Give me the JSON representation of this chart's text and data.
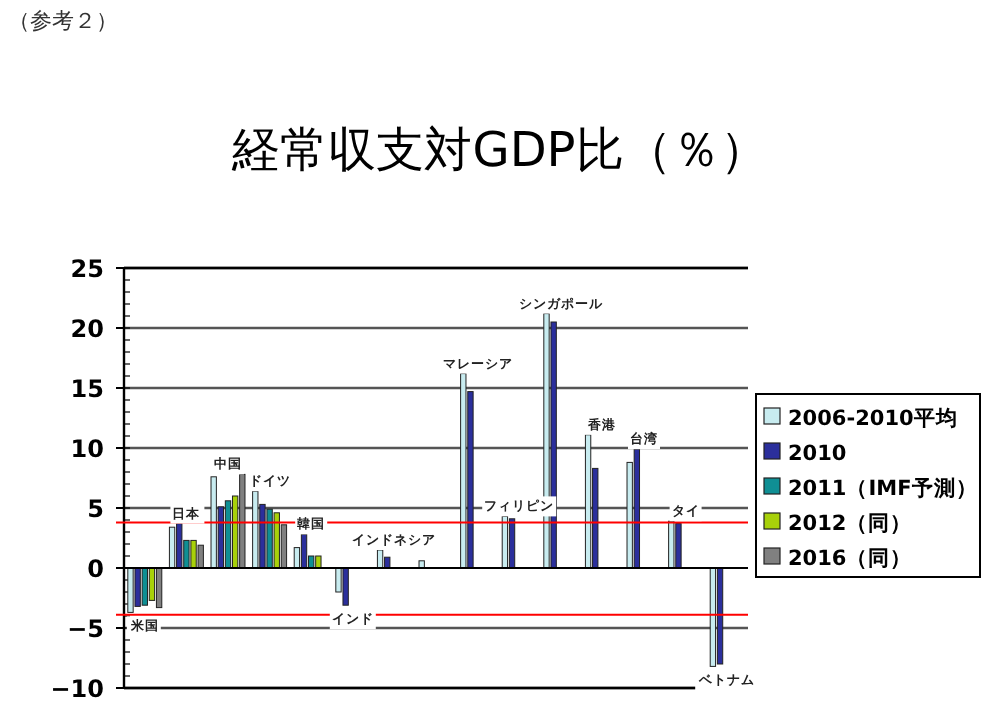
{
  "chart_data": {
    "type": "bar",
    "title": "経常収支対GDP比（％）",
    "annotations": [
      "（参考２）"
    ],
    "categories": [
      "米国",
      "日本",
      "中国",
      "ドイツ",
      "韓国",
      "インド",
      "インドネシア",
      null,
      "マレーシア",
      "フィリピン",
      "シンガポール",
      "香港",
      "台湾",
      "タイ",
      "ベトナム"
    ],
    "series": [
      {
        "name": "2006-2010平均",
        "color": "#c8ecf0",
        "values": [
          -3.7,
          3.4,
          7.6,
          6.4,
          1.7,
          -2.0,
          1.5,
          0.6,
          16.2,
          4.3,
          21.2,
          11.1,
          8.8,
          3.9,
          -8.2
        ]
      },
      {
        "name": "2010",
        "color": "#2b2f9c",
        "values": [
          -3.2,
          3.7,
          5.1,
          5.3,
          2.8,
          -3.1,
          0.9,
          null,
          14.7,
          4.1,
          20.5,
          8.3,
          9.9,
          3.7,
          -8.0
        ]
      },
      {
        "name": "2011（IMF予測）",
        "color": "#0f8f94",
        "values": [
          -3.1,
          2.3,
          5.6,
          4.9,
          1.0,
          null,
          null,
          null,
          null,
          null,
          null,
          null,
          null,
          null,
          null
        ]
      },
      {
        "name": "2012（同）",
        "color": "#a8d10a",
        "values": [
          -2.7,
          2.3,
          6.0,
          4.6,
          1.0,
          null,
          null,
          null,
          null,
          null,
          null,
          null,
          null,
          null,
          null
        ]
      },
      {
        "name": "2016（同）",
        "color": "#808080",
        "values": [
          -3.3,
          1.9,
          7.8,
          3.6,
          null,
          null,
          null,
          null,
          null,
          null,
          null,
          null,
          null,
          null,
          null
        ]
      }
    ],
    "ylim": [
      -10,
      25
    ],
    "yticks": [
      -10,
      -5,
      0,
      5,
      10,
      15,
      20,
      25
    ],
    "grid": "y",
    "legend": "right",
    "ref_lines": [
      {
        "axis": "y",
        "value": 3.8,
        "color": "#ff0000"
      },
      {
        "axis": "y",
        "value": -3.9,
        "color": "#ff0000"
      }
    ]
  }
}
